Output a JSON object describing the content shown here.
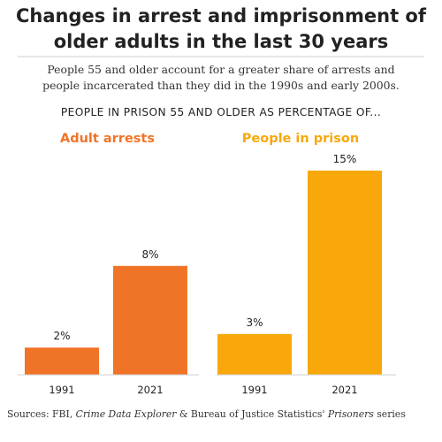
{
  "title_lines": [
    "Changes in arrest and imprisonment of",
    "older adults in the last 30 years"
  ],
  "subtitle_lines": [
    "People 55 and older account for a greater share of arrests and",
    "people incarcerated than they did in the 1990s and early 2000s."
  ],
  "section_label": "PEOPLE IN PRISON 55 AND OLDER AS PERCENTAGE OF...",
  "source": {
    "prefix": "Sources: FBI, ",
    "italic1": "Crime Data Explorer",
    "middle": " & Bureau of Justice Statistics' ",
    "italic2": "Prisoners",
    "suffix": " series"
  },
  "colors": {
    "arrests": "#f07427",
    "prison": "#f9a80b",
    "axis": "#cfcfcf"
  },
  "chart_data": [
    {
      "type": "bar",
      "title": "Adult arrests",
      "categories": [
        "1991",
        "2021"
      ],
      "values": [
        2,
        8
      ],
      "labels": [
        "2%",
        "8%"
      ],
      "ylim": [
        0,
        15
      ],
      "grid": false
    },
    {
      "type": "bar",
      "title": "People in prison",
      "categories": [
        "1991",
        "2021"
      ],
      "values": [
        3,
        15
      ],
      "labels": [
        "3%",
        "15%"
      ],
      "ylim": [
        0,
        15
      ],
      "grid": false
    }
  ]
}
